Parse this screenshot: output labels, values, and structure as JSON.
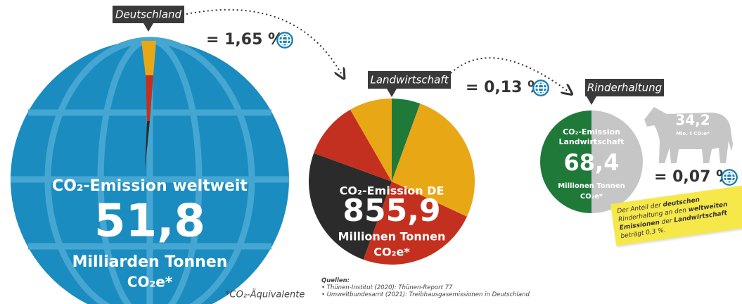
{
  "tags": {
    "world": "Deutschland",
    "de": "Landwirtschaft",
    "agri": "Rinderhaltung"
  },
  "shares": {
    "de": "= 1,65 %",
    "agri": "= 0,13 %",
    "cattle": "= 0,07 %"
  },
  "world": {
    "title": "CO₂-Emission weltweit",
    "value": "51,8",
    "unit": "Milliarden Tonnen",
    "gas": "CO₂e*"
  },
  "germany": {
    "title": "CO₂-Emission DE",
    "value": "855,9",
    "unit": "Millionen Tonnen",
    "gas": "CO₂e*"
  },
  "agriculture": {
    "title": [
      "CO₂-Emission",
      "Landwirtschaft"
    ],
    "value": "68,4",
    "unit": "Millionen Tonnen",
    "gas": "CO₂e*"
  },
  "cattle": {
    "value": "34,2",
    "unit": "Mio. t CO₂e*"
  },
  "footnote": "*CO₂-Äquivalente",
  "note": {
    "parts": [
      "Der Anteil der ",
      "deutschen",
      " Rinderhaltung an den ",
      "weltweiten Emissionen",
      " der ",
      "Landwirtschaft",
      " beträgt 0,3 %."
    ]
  },
  "sources": {
    "title": "Quellen:",
    "items": [
      "• Thünen-Institut (2020): Thünen-Report 77",
      "• Umweltbundesamt (2021): Treibhausgasemissionen in Deutschland"
    ]
  }
}
